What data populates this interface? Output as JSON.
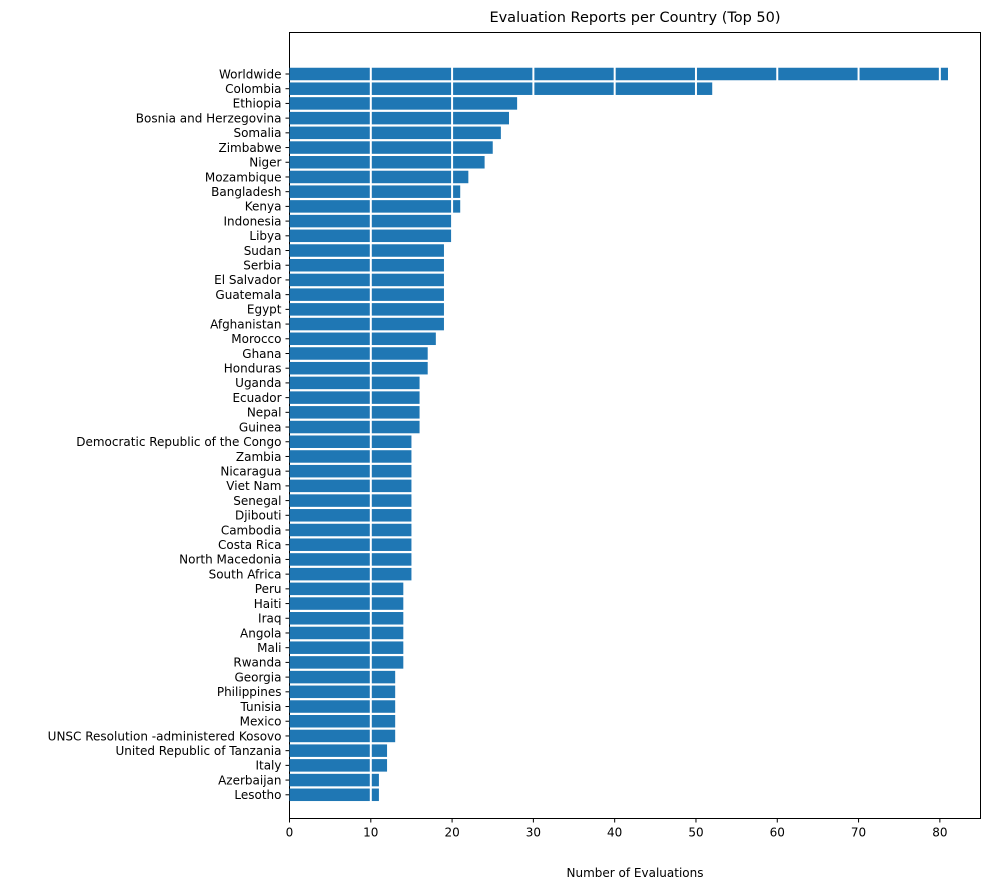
{
  "chart_data": {
    "type": "bar",
    "orientation": "horizontal",
    "title": "Evaluation Reports per Country (Top 50)",
    "xlabel": "Number of Evaluations",
    "ylabel": "",
    "xlim": [
      0,
      85
    ],
    "xticks": [
      0,
      10,
      20,
      30,
      40,
      50,
      60,
      70,
      80
    ],
    "xtick_labels": [
      "0",
      "10",
      "20",
      "30",
      "40",
      "50",
      "60",
      "70",
      "80"
    ],
    "grid": "x-axis gridlines (white)",
    "bar_color": "#1f77b4",
    "categories": [
      "Worldwide",
      "Colombia",
      "Ethiopia",
      "Bosnia and Herzegovina",
      "Somalia",
      "Zimbabwe",
      "Niger",
      "Mozambique",
      "Bangladesh",
      "Kenya",
      "Indonesia",
      "Libya",
      "Sudan",
      "Serbia",
      "El Salvador",
      "Guatemala",
      "Egypt",
      "Afghanistan",
      "Morocco",
      "Ghana",
      "Honduras",
      "Uganda",
      "Ecuador",
      "Nepal",
      "Guinea",
      "Democratic Republic of the Congo",
      "Zambia",
      "Nicaragua",
      "Viet Nam",
      "Senegal",
      "Djibouti",
      "Cambodia",
      "Costa Rica",
      "North Macedonia",
      "South Africa",
      "Peru",
      "Haiti",
      "Iraq",
      "Angola",
      "Mali",
      "Rwanda",
      "Georgia",
      "Philippines",
      "Tunisia",
      "Mexico",
      "UNSC Resolution -administered Kosovo",
      "United Republic of Tanzania",
      "Italy",
      "Azerbaijan",
      "Lesotho"
    ],
    "values": [
      81,
      52,
      28,
      27,
      26,
      25,
      24,
      22,
      21,
      21,
      20,
      20,
      19,
      19,
      19,
      19,
      19,
      19,
      18,
      17,
      17,
      16,
      16,
      16,
      16,
      15,
      15,
      15,
      15,
      15,
      15,
      15,
      15,
      15,
      15,
      14,
      14,
      14,
      14,
      14,
      14,
      13,
      13,
      13,
      13,
      13,
      12,
      12,
      11,
      11
    ]
  }
}
